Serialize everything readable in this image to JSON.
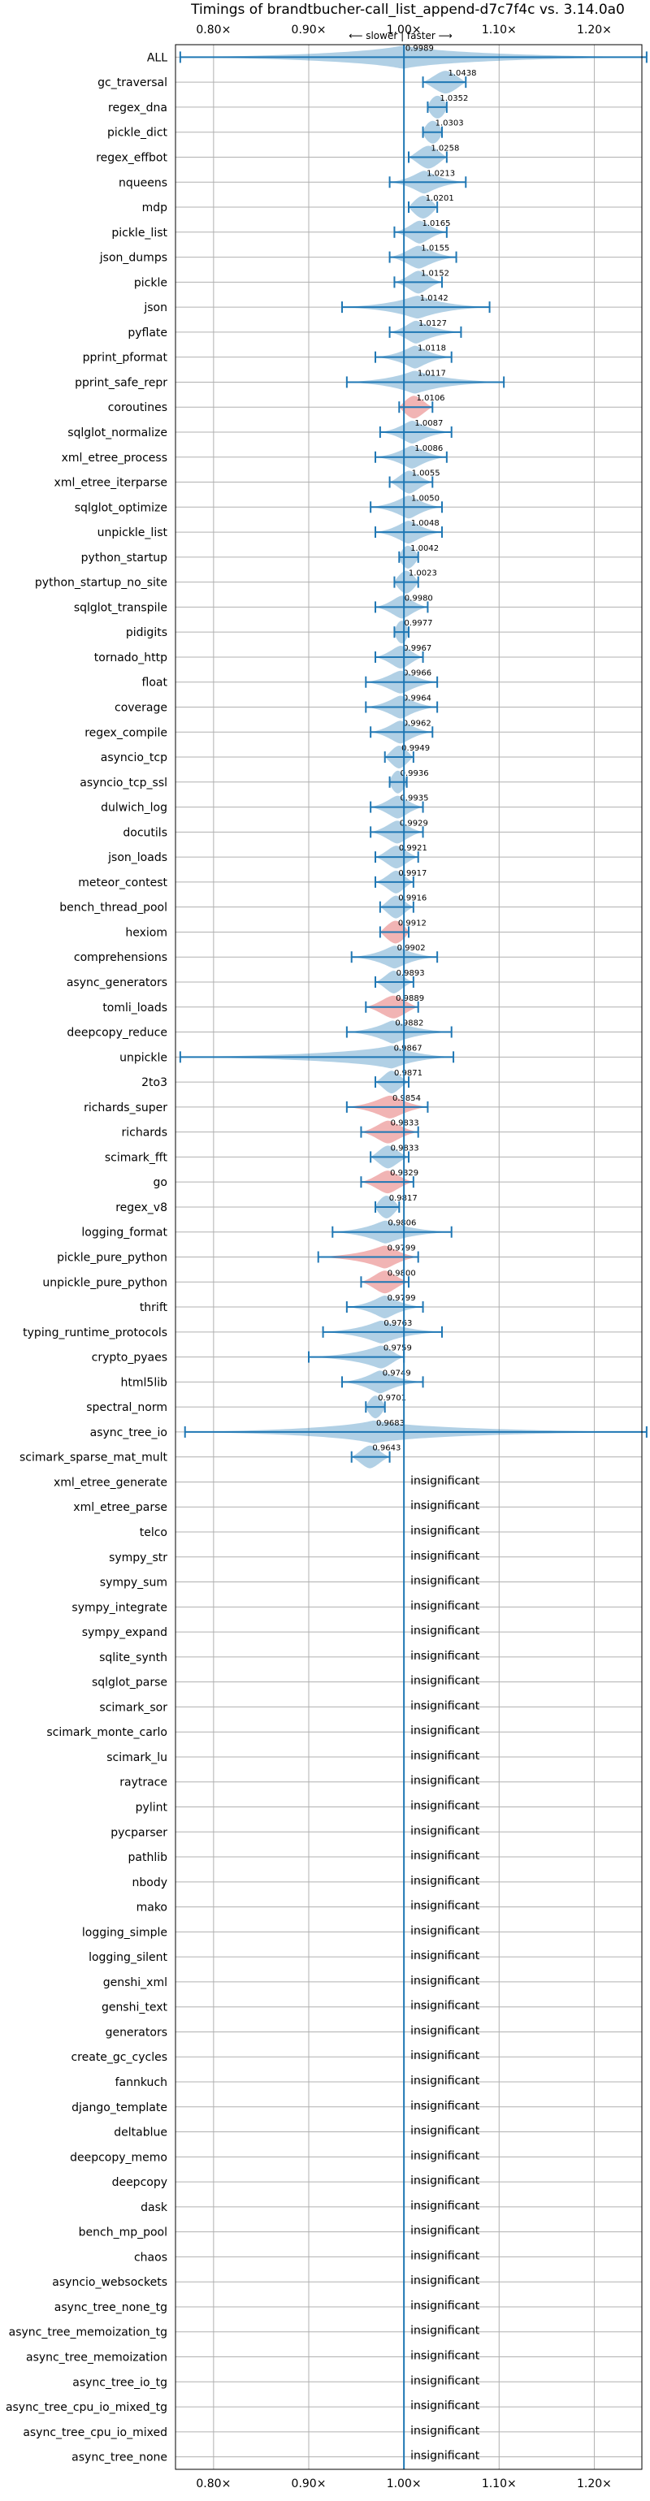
{
  "chart_data": {
    "type": "violin",
    "title": "Timings of brandtbucher-call_list_append-d7c7f4c vs. 3.14.0a0",
    "axis_note": "⟵ slower | faster ⟶",
    "xlim": [
      0.76,
      1.25
    ],
    "xticks": [
      0.8,
      0.9,
      1.0,
      1.1,
      1.2
    ],
    "xtick_labels": [
      "0.80×",
      "0.90×",
      "1.00×",
      "1.10×",
      "1.20×"
    ],
    "grid": true,
    "colors": {
      "faster": "#1f77b4",
      "slower": "#d62728",
      "line": "#1f77b4"
    },
    "benchmarks": [
      {
        "name": "ALL",
        "value": "0.9989",
        "mean": 0.9989,
        "lo": 0.765,
        "hi": 1.255,
        "width": 0.012,
        "slower": false
      },
      {
        "name": "gc_traversal",
        "value": "1.0438",
        "mean": 1.0438,
        "lo": 1.02,
        "hi": 1.065,
        "width": 0.01,
        "slower": false
      },
      {
        "name": "regex_dna",
        "value": "1.0352",
        "mean": 1.0352,
        "lo": 1.025,
        "hi": 1.045,
        "width": 0.008,
        "slower": false
      },
      {
        "name": "pickle_dict",
        "value": "1.0303",
        "mean": 1.0303,
        "lo": 1.02,
        "hi": 1.04,
        "width": 0.008,
        "slower": false
      },
      {
        "name": "regex_effbot",
        "value": "1.0258",
        "mean": 1.0258,
        "lo": 1.005,
        "hi": 1.045,
        "width": 0.009,
        "slower": false
      },
      {
        "name": "nqueens",
        "value": "1.0213",
        "mean": 1.0213,
        "lo": 0.985,
        "hi": 1.065,
        "width": 0.008,
        "slower": false
      },
      {
        "name": "mdp",
        "value": "1.0201",
        "mean": 1.0201,
        "lo": 1.005,
        "hi": 1.035,
        "width": 0.008,
        "slower": false
      },
      {
        "name": "pickle_list",
        "value": "1.0165",
        "mean": 1.0165,
        "lo": 0.99,
        "hi": 1.045,
        "width": 0.008,
        "slower": false
      },
      {
        "name": "json_dumps",
        "value": "1.0155",
        "mean": 1.0155,
        "lo": 0.985,
        "hi": 1.055,
        "width": 0.009,
        "slower": false
      },
      {
        "name": "pickle",
        "value": "1.0152",
        "mean": 1.0152,
        "lo": 0.99,
        "hi": 1.04,
        "width": 0.008,
        "slower": false
      },
      {
        "name": "json",
        "value": "1.0142",
        "mean": 1.0142,
        "lo": 0.935,
        "hi": 1.09,
        "width": 0.01,
        "slower": false
      },
      {
        "name": "pyflate",
        "value": "1.0127",
        "mean": 1.0127,
        "lo": 0.985,
        "hi": 1.06,
        "width": 0.008,
        "slower": false
      },
      {
        "name": "pprint_pformat",
        "value": "1.0118",
        "mean": 1.0118,
        "lo": 0.97,
        "hi": 1.05,
        "width": 0.008,
        "slower": false
      },
      {
        "name": "pprint_safe_repr",
        "value": "1.0117",
        "mean": 1.0117,
        "lo": 0.94,
        "hi": 1.105,
        "width": 0.009,
        "slower": false
      },
      {
        "name": "coroutines",
        "value": "1.0106",
        "mean": 1.0106,
        "lo": 0.995,
        "hi": 1.03,
        "width": 0.008,
        "slower": true
      },
      {
        "name": "sqlglot_normalize",
        "value": "1.0087",
        "mean": 1.0087,
        "lo": 0.975,
        "hi": 1.05,
        "width": 0.008,
        "slower": false
      },
      {
        "name": "xml_etree_process",
        "value": "1.0086",
        "mean": 1.0086,
        "lo": 0.97,
        "hi": 1.045,
        "width": 0.008,
        "slower": false
      },
      {
        "name": "xml_etree_iterparse",
        "value": "1.0055",
        "mean": 1.0055,
        "lo": 0.985,
        "hi": 1.03,
        "width": 0.008,
        "slower": false
      },
      {
        "name": "sqlglot_optimize",
        "value": "1.0050",
        "mean": 1.005,
        "lo": 0.965,
        "hi": 1.04,
        "width": 0.008,
        "slower": false
      },
      {
        "name": "unpickle_list",
        "value": "1.0048",
        "mean": 1.0048,
        "lo": 0.97,
        "hi": 1.04,
        "width": 0.008,
        "slower": false
      },
      {
        "name": "python_startup",
        "value": "1.0042",
        "mean": 1.0042,
        "lo": 0.995,
        "hi": 1.015,
        "width": 0.007,
        "slower": false
      },
      {
        "name": "python_startup_no_site",
        "value": "1.0023",
        "mean": 1.0023,
        "lo": 0.99,
        "hi": 1.015,
        "width": 0.007,
        "slower": false
      },
      {
        "name": "sqlglot_transpile",
        "value": "0.9980",
        "mean": 0.998,
        "lo": 0.97,
        "hi": 1.025,
        "width": 0.008,
        "slower": false
      },
      {
        "name": "pidigits",
        "value": "0.9977",
        "mean": 0.9977,
        "lo": 0.99,
        "hi": 1.005,
        "width": 0.006,
        "slower": false
      },
      {
        "name": "tornado_http",
        "value": "0.9967",
        "mean": 0.9967,
        "lo": 0.97,
        "hi": 1.02,
        "width": 0.008,
        "slower": false
      },
      {
        "name": "float",
        "value": "0.9966",
        "mean": 0.9966,
        "lo": 0.96,
        "hi": 1.035,
        "width": 0.009,
        "slower": false
      },
      {
        "name": "coverage",
        "value": "0.9964",
        "mean": 0.9964,
        "lo": 0.96,
        "hi": 1.035,
        "width": 0.008,
        "slower": false
      },
      {
        "name": "regex_compile",
        "value": "0.9962",
        "mean": 0.9962,
        "lo": 0.965,
        "hi": 1.03,
        "width": 0.008,
        "slower": false
      },
      {
        "name": "asyncio_tcp",
        "value": "0.9949",
        "mean": 0.9949,
        "lo": 0.98,
        "hi": 1.01,
        "width": 0.007,
        "slower": false
      },
      {
        "name": "asyncio_tcp_ssl",
        "value": "0.9936",
        "mean": 0.9936,
        "lo": 0.985,
        "hi": 1.003,
        "width": 0.006,
        "slower": false
      },
      {
        "name": "dulwich_log",
        "value": "0.9935",
        "mean": 0.9935,
        "lo": 0.965,
        "hi": 1.02,
        "width": 0.008,
        "slower": false
      },
      {
        "name": "docutils",
        "value": "0.9929",
        "mean": 0.9929,
        "lo": 0.965,
        "hi": 1.02,
        "width": 0.008,
        "slower": false
      },
      {
        "name": "json_loads",
        "value": "0.9921",
        "mean": 0.9921,
        "lo": 0.97,
        "hi": 1.015,
        "width": 0.008,
        "slower": false
      },
      {
        "name": "meteor_contest",
        "value": "0.9917",
        "mean": 0.9917,
        "lo": 0.97,
        "hi": 1.01,
        "width": 0.007,
        "slower": false
      },
      {
        "name": "bench_thread_pool",
        "value": "0.9916",
        "mean": 0.9916,
        "lo": 0.975,
        "hi": 1.01,
        "width": 0.007,
        "slower": false
      },
      {
        "name": "hexiom",
        "value": "0.9912",
        "mean": 0.9912,
        "lo": 0.975,
        "hi": 1.005,
        "width": 0.008,
        "slower": true
      },
      {
        "name": "comprehensions",
        "value": "0.9902",
        "mean": 0.9902,
        "lo": 0.945,
        "hi": 1.035,
        "width": 0.008,
        "slower": false
      },
      {
        "name": "async_generators",
        "value": "0.9893",
        "mean": 0.9893,
        "lo": 0.97,
        "hi": 1.01,
        "width": 0.007,
        "slower": false
      },
      {
        "name": "tomli_loads",
        "value": "0.9889",
        "mean": 0.9889,
        "lo": 0.96,
        "hi": 1.015,
        "width": 0.01,
        "slower": true
      },
      {
        "name": "deepcopy_reduce",
        "value": "0.9882",
        "mean": 0.9882,
        "lo": 0.94,
        "hi": 1.05,
        "width": 0.008,
        "slower": false
      },
      {
        "name": "unpickle",
        "value": "0.9867",
        "mean": 0.9867,
        "lo": 0.765,
        "hi": 1.052,
        "width": 0.009,
        "slower": false
      },
      {
        "name": "2to3",
        "value": "0.9871",
        "mean": 0.9871,
        "lo": 0.97,
        "hi": 1.005,
        "width": 0.007,
        "slower": false
      },
      {
        "name": "richards_super",
        "value": "0.9854",
        "mean": 0.9854,
        "lo": 0.94,
        "hi": 1.025,
        "width": 0.01,
        "slower": true
      },
      {
        "name": "richards",
        "value": "0.9833",
        "mean": 0.9833,
        "lo": 0.955,
        "hi": 1.015,
        "width": 0.009,
        "slower": true
      },
      {
        "name": "scimark_fft",
        "value": "0.9833",
        "mean": 0.9833,
        "lo": 0.965,
        "hi": 1.005,
        "width": 0.008,
        "slower": false
      },
      {
        "name": "go",
        "value": "0.9829",
        "mean": 0.9829,
        "lo": 0.955,
        "hi": 1.01,
        "width": 0.009,
        "slower": true
      },
      {
        "name": "regex_v8",
        "value": "0.9817",
        "mean": 0.9817,
        "lo": 0.97,
        "hi": 0.995,
        "width": 0.007,
        "slower": false
      },
      {
        "name": "logging_format",
        "value": "0.9806",
        "mean": 0.9806,
        "lo": 0.925,
        "hi": 1.05,
        "width": 0.009,
        "slower": false
      },
      {
        "name": "pickle_pure_python",
        "value": "0.9799",
        "mean": 0.9799,
        "lo": 0.91,
        "hi": 1.015,
        "width": 0.009,
        "slower": true
      },
      {
        "name": "unpickle_pure_python",
        "value": "0.9800",
        "mean": 0.98,
        "lo": 0.955,
        "hi": 1.005,
        "width": 0.009,
        "slower": true
      },
      {
        "name": "thrift",
        "value": "0.9799",
        "mean": 0.9799,
        "lo": 0.94,
        "hi": 1.02,
        "width": 0.008,
        "slower": false
      },
      {
        "name": "typing_runtime_protocols",
        "value": "0.9763",
        "mean": 0.9763,
        "lo": 0.915,
        "hi": 1.04,
        "width": 0.009,
        "slower": false
      },
      {
        "name": "crypto_pyaes",
        "value": "0.9759",
        "mean": 0.9759,
        "lo": 0.9,
        "hi": 1.0,
        "width": 0.009,
        "slower": false
      },
      {
        "name": "html5lib",
        "value": "0.9749",
        "mean": 0.9749,
        "lo": 0.935,
        "hi": 1.02,
        "width": 0.008,
        "slower": false
      },
      {
        "name": "spectral_norm",
        "value": "0.9701",
        "mean": 0.9701,
        "lo": 0.96,
        "hi": 0.98,
        "width": 0.006,
        "slower": false
      },
      {
        "name": "async_tree_io",
        "value": "0.9683",
        "mean": 0.9683,
        "lo": 0.77,
        "hi": 1.255,
        "width": 0.009,
        "slower": false
      },
      {
        "name": "scimark_sparse_mat_mult",
        "value": "0.9643",
        "mean": 0.9643,
        "lo": 0.945,
        "hi": 0.985,
        "width": 0.008,
        "slower": false
      },
      {
        "name": "xml_etree_generate",
        "value": "insignificant"
      },
      {
        "name": "xml_etree_parse",
        "value": "insignificant"
      },
      {
        "name": "telco",
        "value": "insignificant"
      },
      {
        "name": "sympy_str",
        "value": "insignificant"
      },
      {
        "name": "sympy_sum",
        "value": "insignificant"
      },
      {
        "name": "sympy_integrate",
        "value": "insignificant"
      },
      {
        "name": "sympy_expand",
        "value": "insignificant"
      },
      {
        "name": "sqlite_synth",
        "value": "insignificant"
      },
      {
        "name": "sqlglot_parse",
        "value": "insignificant"
      },
      {
        "name": "scimark_sor",
        "value": "insignificant"
      },
      {
        "name": "scimark_monte_carlo",
        "value": "insignificant"
      },
      {
        "name": "scimark_lu",
        "value": "insignificant"
      },
      {
        "name": "raytrace",
        "value": "insignificant"
      },
      {
        "name": "pylint",
        "value": "insignificant"
      },
      {
        "name": "pycparser",
        "value": "insignificant"
      },
      {
        "name": "pathlib",
        "value": "insignificant"
      },
      {
        "name": "nbody",
        "value": "insignificant"
      },
      {
        "name": "mako",
        "value": "insignificant"
      },
      {
        "name": "logging_simple",
        "value": "insignificant"
      },
      {
        "name": "logging_silent",
        "value": "insignificant"
      },
      {
        "name": "genshi_xml",
        "value": "insignificant"
      },
      {
        "name": "genshi_text",
        "value": "insignificant"
      },
      {
        "name": "generators",
        "value": "insignificant"
      },
      {
        "name": "create_gc_cycles",
        "value": "insignificant"
      },
      {
        "name": "fannkuch",
        "value": "insignificant"
      },
      {
        "name": "django_template",
        "value": "insignificant"
      },
      {
        "name": "deltablue",
        "value": "insignificant"
      },
      {
        "name": "deepcopy_memo",
        "value": "insignificant"
      },
      {
        "name": "deepcopy",
        "value": "insignificant"
      },
      {
        "name": "dask",
        "value": "insignificant"
      },
      {
        "name": "bench_mp_pool",
        "value": "insignificant"
      },
      {
        "name": "chaos",
        "value": "insignificant"
      },
      {
        "name": "asyncio_websockets",
        "value": "insignificant"
      },
      {
        "name": "async_tree_none_tg",
        "value": "insignificant"
      },
      {
        "name": "async_tree_memoization_tg",
        "value": "insignificant"
      },
      {
        "name": "async_tree_memoization",
        "value": "insignificant"
      },
      {
        "name": "async_tree_io_tg",
        "value": "insignificant"
      },
      {
        "name": "async_tree_cpu_io_mixed_tg",
        "value": "insignificant"
      },
      {
        "name": "async_tree_cpu_io_mixed",
        "value": "insignificant"
      },
      {
        "name": "async_tree_none",
        "value": "insignificant"
      }
    ]
  }
}
